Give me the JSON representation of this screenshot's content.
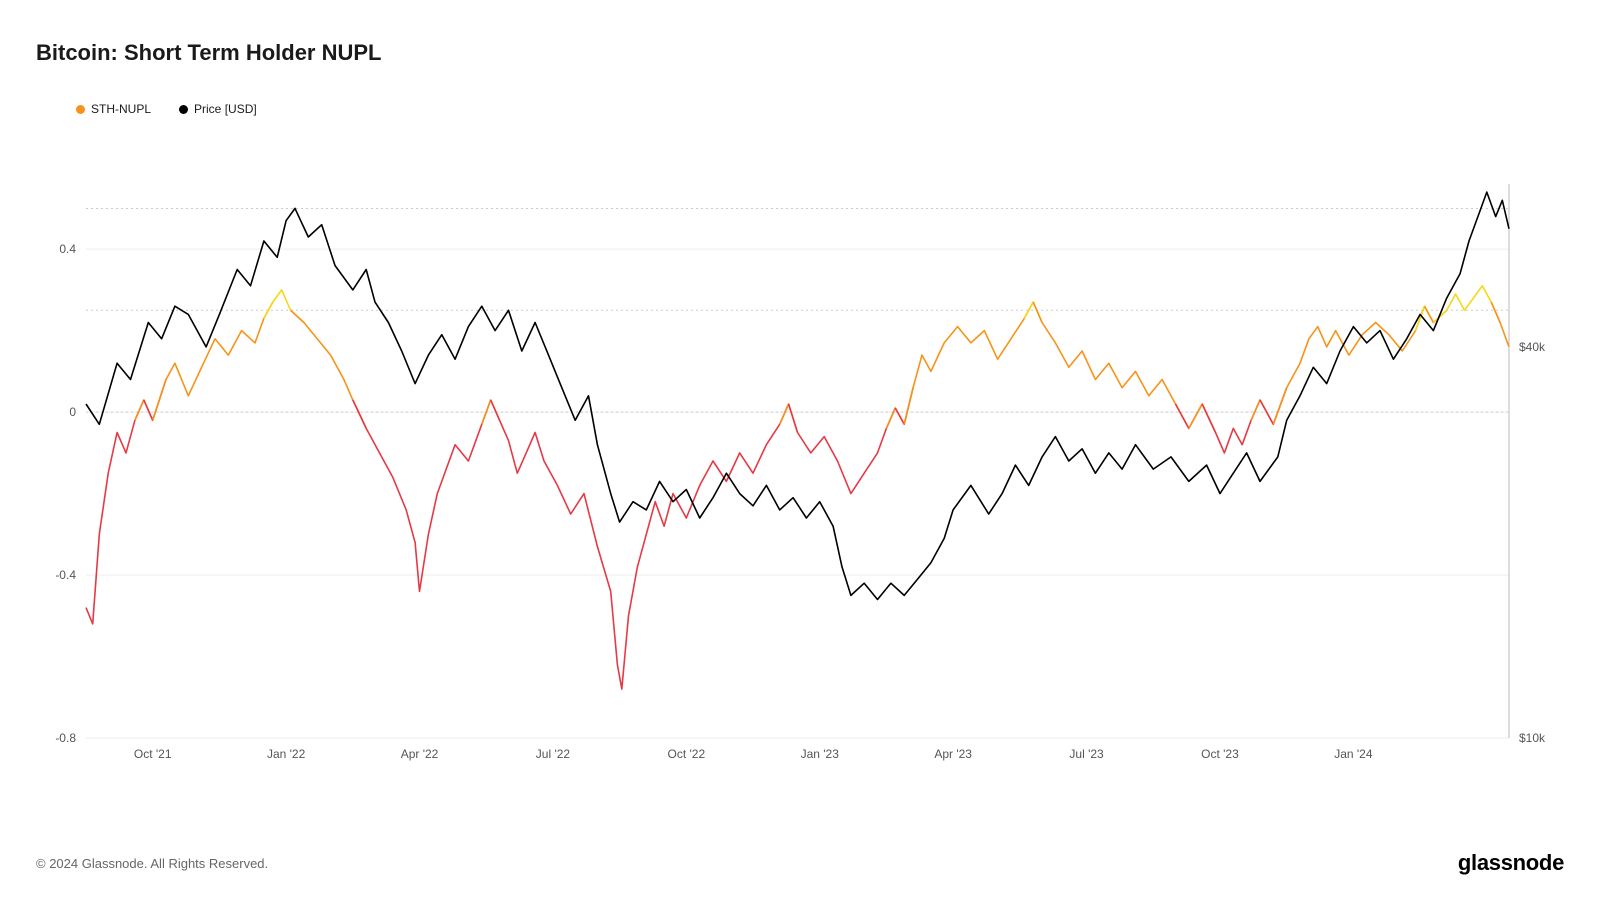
{
  "title": "Bitcoin: Short Term Holder NUPL",
  "copyright": "© 2024 Glassnode. All Rights Reserved.",
  "brand": "glassnode",
  "legend": [
    {
      "label": "STH-NUPL",
      "color": "#f7931a"
    },
    {
      "label": "Price [USD]",
      "color": "#000000"
    }
  ],
  "chart": {
    "type": "line",
    "background_color": "#ffffff",
    "grid_color": "#eeeeee",
    "dotted_grid_color": "#cccccc",
    "axis_font_size": 12,
    "axis_color": "#555555",
    "left_axis": {
      "min": -0.8,
      "max": 0.56,
      "ticks": [
        -0.8,
        -0.4,
        0,
        0.4
      ],
      "dotted_lines": [
        0,
        0.25,
        0.5
      ]
    },
    "right_axis": {
      "label_40k": "$40k",
      "label_10k": "$10k",
      "y_at_40k": 0.16,
      "y_at_10k": -0.8
    },
    "x_labels": [
      "Oct '21",
      "Jan '22",
      "Apr '22",
      "Jul '22",
      "Oct '22",
      "Jan '23",
      "Apr '23",
      "Jul '23",
      "Oct '23",
      "Jan '24"
    ],
    "x_range": [
      0,
      32
    ],
    "line_width": 1.6,
    "colors": {
      "price": "#000000",
      "nupl_pos": "#f7931a",
      "nupl_neg": "#e63946",
      "nupl_high": "#f5d916"
    },
    "price": [
      [
        0.0,
        0.02
      ],
      [
        0.3,
        -0.03
      ],
      [
        0.7,
        0.12
      ],
      [
        1.0,
        0.08
      ],
      [
        1.4,
        0.22
      ],
      [
        1.7,
        0.18
      ],
      [
        2.0,
        0.26
      ],
      [
        2.3,
        0.24
      ],
      [
        2.7,
        0.16
      ],
      [
        3.0,
        0.24
      ],
      [
        3.4,
        0.35
      ],
      [
        3.7,
        0.31
      ],
      [
        4.0,
        0.42
      ],
      [
        4.3,
        0.38
      ],
      [
        4.5,
        0.47
      ],
      [
        4.7,
        0.5
      ],
      [
        5.0,
        0.43
      ],
      [
        5.3,
        0.46
      ],
      [
        5.6,
        0.36
      ],
      [
        6.0,
        0.3
      ],
      [
        6.3,
        0.35
      ],
      [
        6.5,
        0.27
      ],
      [
        6.8,
        0.22
      ],
      [
        7.1,
        0.15
      ],
      [
        7.4,
        0.07
      ],
      [
        7.7,
        0.14
      ],
      [
        8.0,
        0.19
      ],
      [
        8.3,
        0.13
      ],
      [
        8.6,
        0.21
      ],
      [
        8.9,
        0.26
      ],
      [
        9.2,
        0.2
      ],
      [
        9.5,
        0.25
      ],
      [
        9.8,
        0.15
      ],
      [
        10.1,
        0.22
      ],
      [
        10.4,
        0.14
      ],
      [
        10.7,
        0.06
      ],
      [
        11.0,
        -0.02
      ],
      [
        11.3,
        0.04
      ],
      [
        11.5,
        -0.08
      ],
      [
        11.8,
        -0.2
      ],
      [
        12.0,
        -0.27
      ],
      [
        12.3,
        -0.22
      ],
      [
        12.6,
        -0.24
      ],
      [
        12.9,
        -0.17
      ],
      [
        13.2,
        -0.22
      ],
      [
        13.5,
        -0.19
      ],
      [
        13.8,
        -0.26
      ],
      [
        14.1,
        -0.21
      ],
      [
        14.4,
        -0.15
      ],
      [
        14.7,
        -0.2
      ],
      [
        15.0,
        -0.23
      ],
      [
        15.3,
        -0.18
      ],
      [
        15.6,
        -0.24
      ],
      [
        15.9,
        -0.21
      ],
      [
        16.2,
        -0.26
      ],
      [
        16.5,
        -0.22
      ],
      [
        16.8,
        -0.28
      ],
      [
        17.0,
        -0.38
      ],
      [
        17.2,
        -0.45
      ],
      [
        17.5,
        -0.42
      ],
      [
        17.8,
        -0.46
      ],
      [
        18.1,
        -0.42
      ],
      [
        18.4,
        -0.45
      ],
      [
        18.7,
        -0.41
      ],
      [
        19.0,
        -0.37
      ],
      [
        19.3,
        -0.31
      ],
      [
        19.5,
        -0.24
      ],
      [
        19.9,
        -0.18
      ],
      [
        20.3,
        -0.25
      ],
      [
        20.6,
        -0.2
      ],
      [
        20.9,
        -0.13
      ],
      [
        21.2,
        -0.18
      ],
      [
        21.5,
        -0.11
      ],
      [
        21.8,
        -0.06
      ],
      [
        22.1,
        -0.12
      ],
      [
        22.4,
        -0.09
      ],
      [
        22.7,
        -0.15
      ],
      [
        23.0,
        -0.1
      ],
      [
        23.3,
        -0.14
      ],
      [
        23.6,
        -0.08
      ],
      [
        24.0,
        -0.14
      ],
      [
        24.4,
        -0.11
      ],
      [
        24.8,
        -0.17
      ],
      [
        25.2,
        -0.13
      ],
      [
        25.5,
        -0.2
      ],
      [
        25.8,
        -0.15
      ],
      [
        26.1,
        -0.1
      ],
      [
        26.4,
        -0.17
      ],
      [
        26.8,
        -0.11
      ],
      [
        27.0,
        -0.02
      ],
      [
        27.3,
        0.04
      ],
      [
        27.6,
        0.11
      ],
      [
        27.9,
        0.07
      ],
      [
        28.2,
        0.15
      ],
      [
        28.5,
        0.21
      ],
      [
        28.8,
        0.17
      ],
      [
        29.1,
        0.2
      ],
      [
        29.4,
        0.13
      ],
      [
        29.7,
        0.18
      ],
      [
        30.0,
        0.24
      ],
      [
        30.3,
        0.2
      ],
      [
        30.6,
        0.28
      ],
      [
        30.9,
        0.34
      ],
      [
        31.1,
        0.42
      ],
      [
        31.3,
        0.48
      ],
      [
        31.5,
        0.54
      ],
      [
        31.7,
        0.48
      ],
      [
        31.85,
        0.52
      ],
      [
        32.0,
        0.45
      ]
    ],
    "nupl": [
      [
        0.0,
        -0.48
      ],
      [
        0.15,
        -0.52
      ],
      [
        0.3,
        -0.3
      ],
      [
        0.5,
        -0.15
      ],
      [
        0.7,
        -0.05
      ],
      [
        0.9,
        -0.1
      ],
      [
        1.1,
        -0.02
      ],
      [
        1.3,
        0.03
      ],
      [
        1.5,
        -0.02
      ],
      [
        1.8,
        0.08
      ],
      [
        2.0,
        0.12
      ],
      [
        2.3,
        0.04
      ],
      [
        2.6,
        0.11
      ],
      [
        2.9,
        0.18
      ],
      [
        3.2,
        0.14
      ],
      [
        3.5,
        0.2
      ],
      [
        3.8,
        0.17
      ],
      [
        4.0,
        0.23
      ],
      [
        4.2,
        0.27
      ],
      [
        4.4,
        0.3
      ],
      [
        4.6,
        0.25
      ],
      [
        4.9,
        0.22
      ],
      [
        5.2,
        0.18
      ],
      [
        5.5,
        0.14
      ],
      [
        5.8,
        0.08
      ],
      [
        6.0,
        0.03
      ],
      [
        6.3,
        -0.04
      ],
      [
        6.6,
        -0.1
      ],
      [
        6.9,
        -0.16
      ],
      [
        7.2,
        -0.24
      ],
      [
        7.4,
        -0.32
      ],
      [
        7.5,
        -0.44
      ],
      [
        7.7,
        -0.3
      ],
      [
        7.9,
        -0.2
      ],
      [
        8.1,
        -0.14
      ],
      [
        8.3,
        -0.08
      ],
      [
        8.6,
        -0.12
      ],
      [
        8.9,
        -0.03
      ],
      [
        9.1,
        0.03
      ],
      [
        9.3,
        -0.02
      ],
      [
        9.5,
        -0.07
      ],
      [
        9.7,
        -0.15
      ],
      [
        9.9,
        -0.1
      ],
      [
        10.1,
        -0.05
      ],
      [
        10.3,
        -0.12
      ],
      [
        10.6,
        -0.18
      ],
      [
        10.9,
        -0.25
      ],
      [
        11.2,
        -0.2
      ],
      [
        11.5,
        -0.33
      ],
      [
        11.8,
        -0.44
      ],
      [
        11.95,
        -0.62
      ],
      [
        12.05,
        -0.68
      ],
      [
        12.2,
        -0.5
      ],
      [
        12.4,
        -0.38
      ],
      [
        12.6,
        -0.3
      ],
      [
        12.8,
        -0.22
      ],
      [
        13.0,
        -0.28
      ],
      [
        13.2,
        -0.2
      ],
      [
        13.5,
        -0.26
      ],
      [
        13.8,
        -0.18
      ],
      [
        14.1,
        -0.12
      ],
      [
        14.4,
        -0.17
      ],
      [
        14.7,
        -0.1
      ],
      [
        15.0,
        -0.15
      ],
      [
        15.3,
        -0.08
      ],
      [
        15.6,
        -0.03
      ],
      [
        15.8,
        0.02
      ],
      [
        16.0,
        -0.05
      ],
      [
        16.3,
        -0.1
      ],
      [
        16.6,
        -0.06
      ],
      [
        16.9,
        -0.12
      ],
      [
        17.2,
        -0.2
      ],
      [
        17.5,
        -0.15
      ],
      [
        17.8,
        -0.1
      ],
      [
        18.0,
        -0.04
      ],
      [
        18.2,
        0.01
      ],
      [
        18.4,
        -0.03
      ],
      [
        18.6,
        0.06
      ],
      [
        18.8,
        0.14
      ],
      [
        19.0,
        0.1
      ],
      [
        19.3,
        0.17
      ],
      [
        19.6,
        0.21
      ],
      [
        19.9,
        0.17
      ],
      [
        20.2,
        0.2
      ],
      [
        20.5,
        0.13
      ],
      [
        20.8,
        0.18
      ],
      [
        21.1,
        0.23
      ],
      [
        21.3,
        0.27
      ],
      [
        21.5,
        0.22
      ],
      [
        21.8,
        0.17
      ],
      [
        22.1,
        0.11
      ],
      [
        22.4,
        0.15
      ],
      [
        22.7,
        0.08
      ],
      [
        23.0,
        0.12
      ],
      [
        23.3,
        0.06
      ],
      [
        23.6,
        0.1
      ],
      [
        23.9,
        0.04
      ],
      [
        24.2,
        0.08
      ],
      [
        24.5,
        0.02
      ],
      [
        24.8,
        -0.04
      ],
      [
        25.1,
        0.02
      ],
      [
        25.4,
        -0.05
      ],
      [
        25.6,
        -0.1
      ],
      [
        25.8,
        -0.04
      ],
      [
        26.0,
        -0.08
      ],
      [
        26.2,
        -0.02
      ],
      [
        26.4,
        0.03
      ],
      [
        26.7,
        -0.03
      ],
      [
        27.0,
        0.06
      ],
      [
        27.3,
        0.12
      ],
      [
        27.5,
        0.18
      ],
      [
        27.7,
        0.21
      ],
      [
        27.9,
        0.16
      ],
      [
        28.1,
        0.2
      ],
      [
        28.4,
        0.14
      ],
      [
        28.7,
        0.19
      ],
      [
        29.0,
        0.22
      ],
      [
        29.3,
        0.19
      ],
      [
        29.6,
        0.15
      ],
      [
        29.9,
        0.2
      ],
      [
        30.1,
        0.26
      ],
      [
        30.3,
        0.22
      ],
      [
        30.6,
        0.25
      ],
      [
        30.8,
        0.29
      ],
      [
        31.0,
        0.25
      ],
      [
        31.2,
        0.28
      ],
      [
        31.4,
        0.31
      ],
      [
        31.6,
        0.27
      ],
      [
        31.8,
        0.22
      ],
      [
        32.0,
        0.16
      ]
    ]
  }
}
